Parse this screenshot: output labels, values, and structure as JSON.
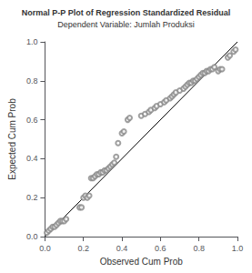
{
  "chart_data": {
    "type": "scatter",
    "title": "Normal P-P Plot of Regression Standardized Residual",
    "subtitle": "Dependent Variable: Jumlah Produksi",
    "xlabel": "Observed Cum Prob",
    "ylabel": "Expected Cum Prob",
    "xlim": [
      0.0,
      1.0
    ],
    "ylim": [
      0.0,
      1.0
    ],
    "xticks": [
      {
        "value": 0.0,
        "label": "0.0"
      },
      0.2,
      0.4,
      0.6,
      0.8,
      {
        "value": 1.0,
        "label": "1.0"
      }
    ],
    "yticks": [
      {
        "value": 0.0,
        "label": "0.0"
      },
      0.2,
      0.4,
      0.6,
      0.8,
      {
        "value": 1.0,
        "label": "1.0"
      }
    ],
    "grid": false,
    "series": [
      {
        "type": "scatter",
        "color": "#888888",
        "marker": "emptyCircle",
        "x": [
          0.01,
          0.02,
          0.03,
          0.04,
          0.05,
          0.06,
          0.07,
          0.08,
          0.09,
          0.1,
          0.11,
          0.18,
          0.19,
          0.2,
          0.21,
          0.22,
          0.23,
          0.24,
          0.25,
          0.26,
          0.27,
          0.28,
          0.29,
          0.3,
          0.31,
          0.32,
          0.33,
          0.34,
          0.35,
          0.36,
          0.37,
          0.38,
          0.4,
          0.41,
          0.43,
          0.44,
          0.5,
          0.52,
          0.54,
          0.55,
          0.57,
          0.58,
          0.6,
          0.62,
          0.63,
          0.65,
          0.66,
          0.67,
          0.68,
          0.7,
          0.72,
          0.73,
          0.74,
          0.75,
          0.76,
          0.77,
          0.78,
          0.79,
          0.8,
          0.81,
          0.82,
          0.83,
          0.84,
          0.85,
          0.86,
          0.87,
          0.88,
          0.9,
          0.91,
          0.92,
          0.95,
          0.96,
          0.98,
          0.99
        ],
        "values": [
          0.02,
          0.03,
          0.04,
          0.05,
          0.05,
          0.06,
          0.07,
          0.08,
          0.08,
          0.08,
          0.09,
          0.15,
          0.15,
          0.2,
          0.21,
          0.2,
          0.21,
          0.3,
          0.3,
          0.31,
          0.32,
          0.32,
          0.33,
          0.33,
          0.34,
          0.34,
          0.35,
          0.36,
          0.37,
          0.38,
          0.41,
          0.48,
          0.53,
          0.54,
          0.6,
          0.61,
          0.62,
          0.63,
          0.64,
          0.65,
          0.66,
          0.67,
          0.68,
          0.69,
          0.7,
          0.71,
          0.72,
          0.73,
          0.74,
          0.75,
          0.76,
          0.77,
          0.78,
          0.79,
          0.79,
          0.8,
          0.8,
          0.81,
          0.82,
          0.83,
          0.84,
          0.84,
          0.85,
          0.85,
          0.86,
          0.86,
          0.87,
          0.85,
          0.86,
          0.86,
          0.92,
          0.93,
          0.95,
          0.96
        ]
      },
      {
        "type": "line",
        "color": "#000000",
        "x": [
          0,
          1
        ],
        "values": [
          0,
          1
        ]
      }
    ]
  }
}
